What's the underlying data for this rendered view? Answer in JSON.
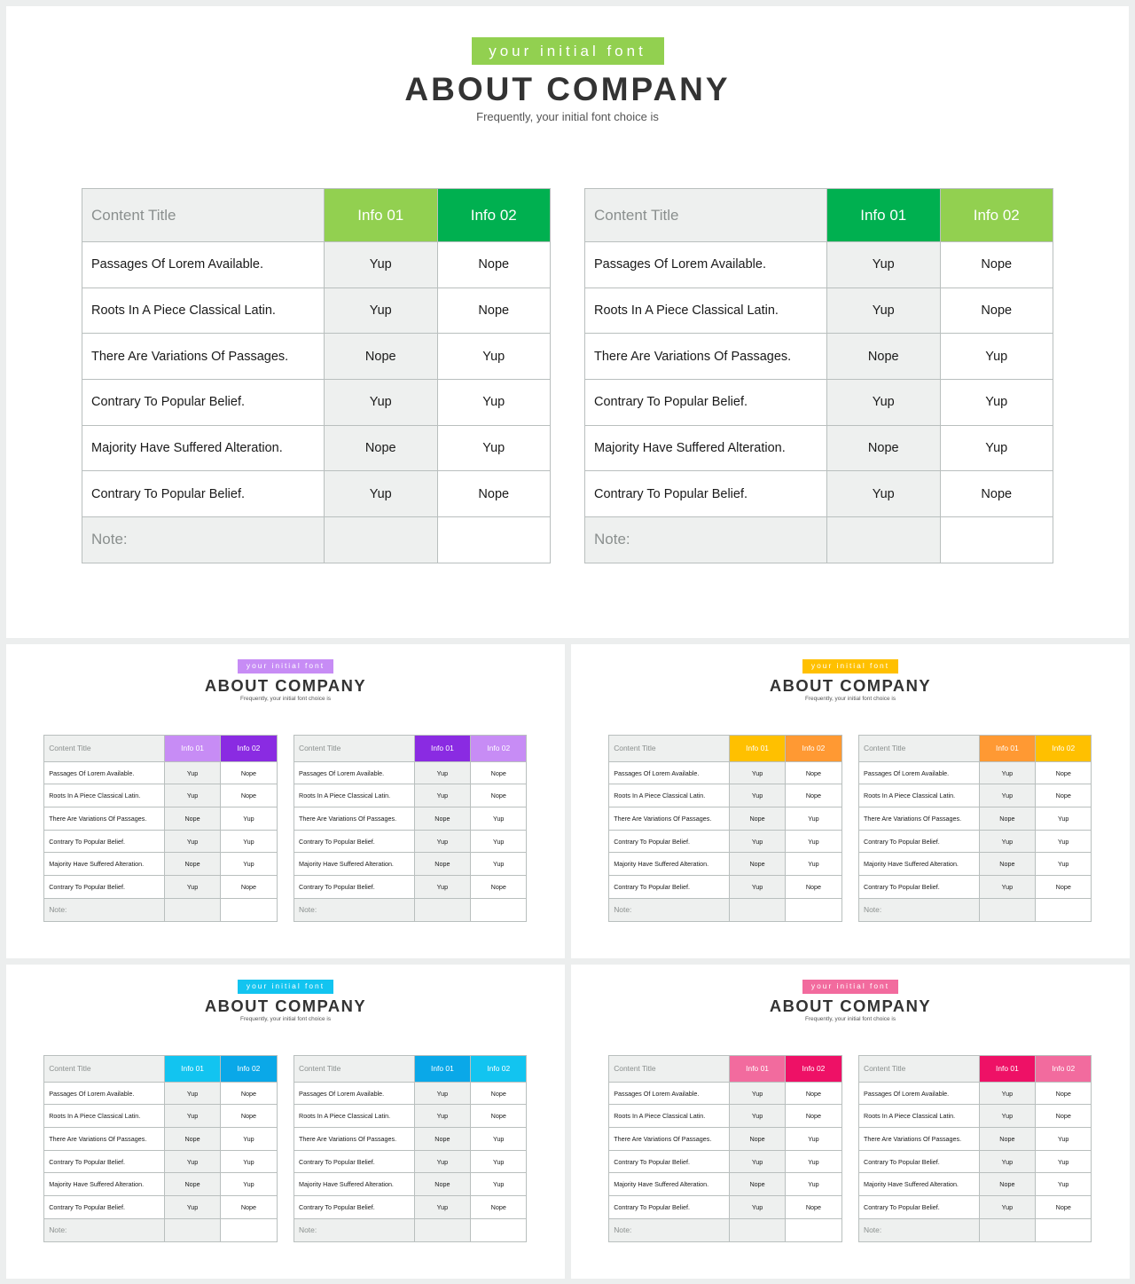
{
  "slides": [
    {
      "tag": "your initial font",
      "title": "ABOUT COMPANY",
      "subtitle": "Frequently, your initial font choice is",
      "tag_color": "#92d050",
      "table1_info01_color": "#92d050",
      "table1_info02_color": "#00b050",
      "table2_info01_color": "#00b050",
      "table2_info02_color": "#92d050"
    },
    {
      "tag": "your initial font",
      "title": "ABOUT COMPANY",
      "subtitle": "Frequently, your initial font choice is",
      "tag_color": "#c78cf5",
      "table1_info01_color": "#c78cf5",
      "table1_info02_color": "#8a2be2",
      "table2_info01_color": "#8a2be2",
      "table2_info02_color": "#c78cf5"
    },
    {
      "tag": "your initial font",
      "title": "ABOUT COMPANY",
      "subtitle": "Frequently, your initial font choice is",
      "tag_color": "#ffc000",
      "table1_info01_color": "#ffc000",
      "table1_info02_color": "#ff9933",
      "table2_info01_color": "#ff9933",
      "table2_info02_color": "#ffc000"
    },
    {
      "tag": "your initial font",
      "title": "ABOUT COMPANY",
      "subtitle": "Frequently, your initial font choice is",
      "tag_color": "#12c4f0",
      "table1_info01_color": "#12c4f0",
      "table1_info02_color": "#0aa8e8",
      "table2_info01_color": "#0aa8e8",
      "table2_info02_color": "#12c4f0"
    },
    {
      "tag": "your initial font",
      "title": "ABOUT COMPANY",
      "subtitle": "Frequently, your initial font choice is",
      "tag_color": "#f26b9e",
      "table1_info01_color": "#f26b9e",
      "table1_info02_color": "#ee1166",
      "table2_info01_color": "#ee1166",
      "table2_info02_color": "#f26b9e"
    }
  ],
  "table": {
    "header": {
      "title": "Content Title",
      "info01": "Info 01",
      "info02": "Info 02"
    },
    "rows": [
      {
        "label": "Passages Of Lorem Available.",
        "info01": "Yup",
        "info02": "Nope"
      },
      {
        "label": "Roots In A Piece Classical Latin.",
        "info01": "Yup",
        "info02": "Nope"
      },
      {
        "label": "There Are Variations Of Passages.",
        "info01": "Nope",
        "info02": "Yup"
      },
      {
        "label": "Contrary To Popular Belief.",
        "info01": "Yup",
        "info02": "Yup"
      },
      {
        "label": "Majority Have Suffered Alteration.",
        "info01": "Nope",
        "info02": "Yup"
      },
      {
        "label": "Contrary To Popular Belief.",
        "info01": "Yup",
        "info02": "Nope"
      }
    ],
    "note": "Note:"
  }
}
